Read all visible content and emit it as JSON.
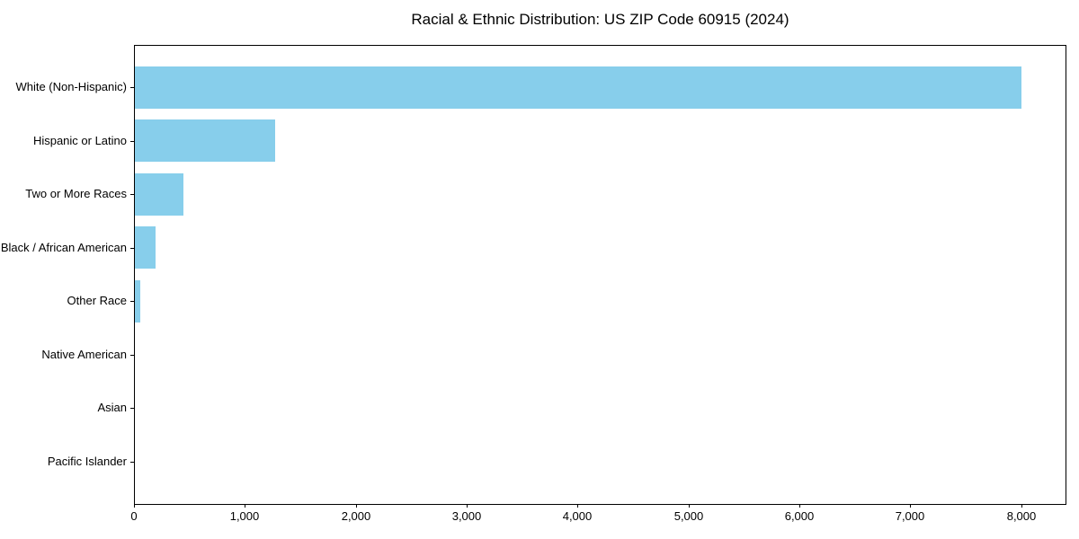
{
  "chart_data": {
    "type": "bar",
    "orientation": "horizontal",
    "title": "Racial & Ethnic Distribution: US ZIP Code 60915 (2024)",
    "categories": [
      "White (Non-Hispanic)",
      "Hispanic or Latino",
      "Two or More Races",
      "Black / African American",
      "Other Race",
      "Native American",
      "Asian",
      "Pacific Islander"
    ],
    "values": [
      8000,
      1270,
      445,
      195,
      55,
      0,
      0,
      0
    ],
    "xlabel": "",
    "ylabel": "",
    "xlim": [
      0,
      8400
    ],
    "xticks": [
      0,
      1000,
      2000,
      3000,
      4000,
      5000,
      6000,
      7000,
      8000
    ],
    "xtick_labels": [
      "0",
      "1,000",
      "2,000",
      "3,000",
      "4,000",
      "5,000",
      "6,000",
      "7,000",
      "8,000"
    ],
    "grid": false,
    "legend": null,
    "bar_color": "#87CEEB",
    "axis_color": "#000000",
    "text_color": "#000000",
    "background_color": "#FFFFFF"
  }
}
